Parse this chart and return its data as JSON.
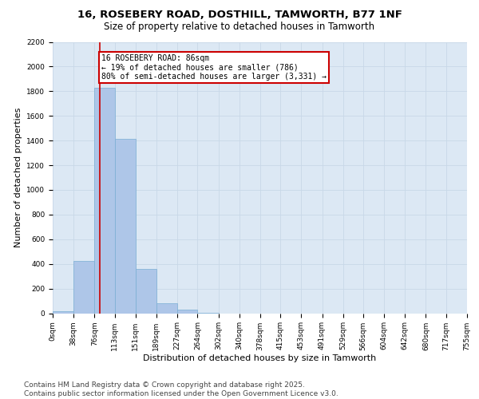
{
  "title1": "16, ROSEBERY ROAD, DOSTHILL, TAMWORTH, B77 1NF",
  "title2": "Size of property relative to detached houses in Tamworth",
  "xlabel": "Distribution of detached houses by size in Tamworth",
  "ylabel": "Number of detached properties",
  "bar_values": [
    15,
    425,
    1830,
    1415,
    360,
    80,
    28,
    5,
    0,
    0,
    0,
    0,
    0,
    0,
    0,
    0,
    0,
    0,
    0,
    0
  ],
  "bin_edges": [
    0,
    38,
    76,
    113,
    151,
    189,
    227,
    264,
    302,
    340,
    378,
    415,
    453,
    491,
    529,
    566,
    604,
    642,
    680,
    717,
    755
  ],
  "tick_labels": [
    "0sqm",
    "38sqm",
    "76sqm",
    "113sqm",
    "151sqm",
    "189sqm",
    "227sqm",
    "264sqm",
    "302sqm",
    "340sqm",
    "378sqm",
    "415sqm",
    "453sqm",
    "491sqm",
    "529sqm",
    "566sqm",
    "604sqm",
    "642sqm",
    "680sqm",
    "717sqm",
    "755sqm"
  ],
  "bar_color": "#aec6e8",
  "bar_edge_color": "#7aaed4",
  "property_line_x": 86,
  "annotation_text": "16 ROSEBERY ROAD: 86sqm\n← 19% of detached houses are smaller (786)\n80% of semi-detached houses are larger (3,331) →",
  "annotation_box_color": "#cc0000",
  "ylim": [
    0,
    2200
  ],
  "yticks": [
    0,
    200,
    400,
    600,
    800,
    1000,
    1200,
    1400,
    1600,
    1800,
    2000,
    2200
  ],
  "grid_color": "#c8d8e8",
  "bg_color": "#dce8f4",
  "footer": "Contains HM Land Registry data © Crown copyright and database right 2025.\nContains public sector information licensed under the Open Government Licence v3.0.",
  "title_fontsize": 9.5,
  "subtitle_fontsize": 8.5,
  "axis_label_fontsize": 8,
  "tick_fontsize": 6.5,
  "annotation_fontsize": 7,
  "footer_fontsize": 6.5
}
